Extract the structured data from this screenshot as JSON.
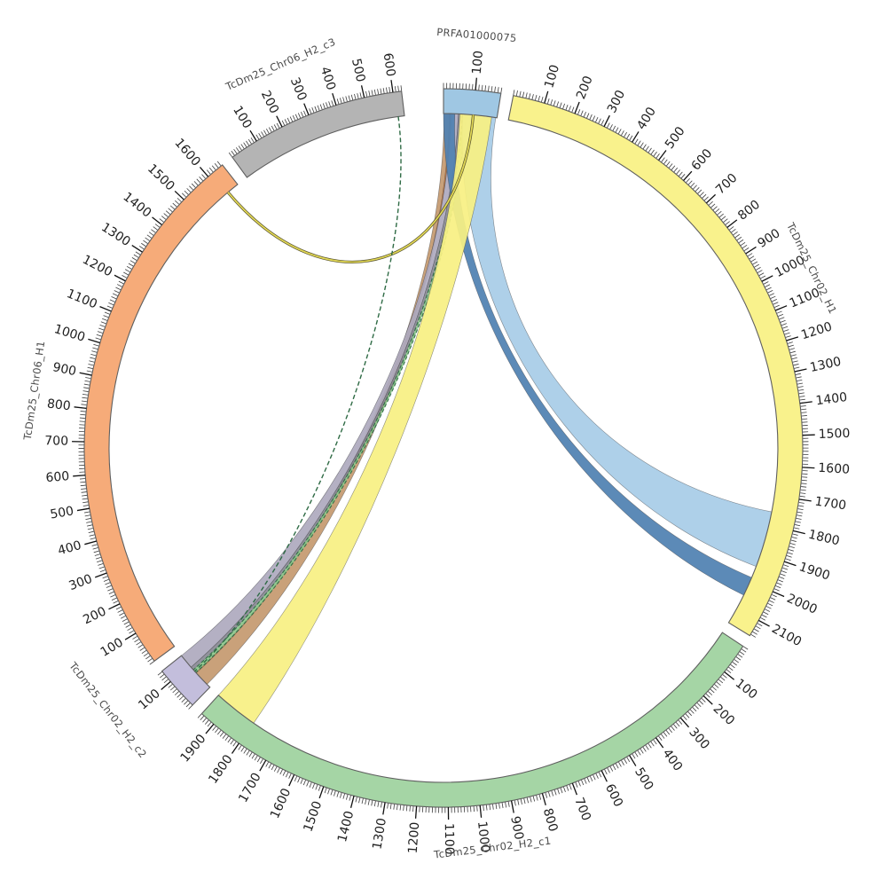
{
  "figure": {
    "background": "#ffffff",
    "kind": "circos-synteny-plot"
  },
  "chart_data": {
    "type": "other",
    "subtype": "circos",
    "tick_minor_step": 10,
    "tick_major_step": 100,
    "segments": [
      {
        "name": "PRFA01000075",
        "color": "#9fc7e3",
        "start_deg": 0.0,
        "end_deg": 9.2,
        "length": 180,
        "label_deg": 4.6,
        "label_r": 463,
        "tick_labels": [
          100
        ]
      },
      {
        "name": "TcDm25_Chr02_H1",
        "color": "#f9f28c",
        "start_deg": 11.2,
        "end_deg": 121.5,
        "length": 2155,
        "label_deg": 64,
        "label_r": 458,
        "tick_labels": [
          100,
          200,
          300,
          400,
          500,
          600,
          700,
          800,
          900,
          1000,
          1100,
          1200,
          1300,
          1400,
          1500,
          1600,
          1700,
          1800,
          1900,
          2000,
          2100
        ]
      },
      {
        "name": "TcDm25_Chr02_H2_c1",
        "color": "#a5d5a5",
        "start_deg": 123.5,
        "end_deg": 222.3,
        "length": 1950,
        "label_deg": 173,
        "label_r": 458,
        "tick_labels": [
          100,
          200,
          300,
          400,
          500,
          600,
          700,
          800,
          900,
          1000,
          1100,
          1200,
          1300,
          1400,
          1500,
          1600,
          1700,
          1800,
          1900
        ]
      },
      {
        "name": "TcDm25_Chr02_H2_c2",
        "color": "#c3bedc",
        "start_deg": 224.3,
        "end_deg": 231.6,
        "length": 142,
        "label_deg": 232,
        "label_r": 484,
        "tick_labels": [
          100
        ]
      },
      {
        "name": "TcDm25_Chr06_H1",
        "color": "#f6ab79",
        "start_deg": 233.6,
        "end_deg": 322.0,
        "length": 1655,
        "label_deg": 278,
        "label_r": 462,
        "tick_labels": [
          100,
          200,
          300,
          400,
          500,
          600,
          700,
          800,
          900,
          1000,
          1100,
          1200,
          1300,
          1400,
          1500,
          1600
        ]
      },
      {
        "name": "TcDm25_Chr06_H2_c3",
        "color": "#b4b4b4",
        "start_deg": 324.0,
        "end_deg": 353.3,
        "length": 630,
        "label_deg": 337,
        "label_r": 466,
        "tick_labels": [
          100,
          200,
          300,
          400,
          500,
          600
        ]
      }
    ],
    "ribbons": [
      {
        "name": "prfa-to-c2-tan",
        "source": {
          "segment": "PRFA01000075",
          "from": 2,
          "to": 22
        },
        "target": {
          "segment": "TcDm25_Chr02_H2_c2",
          "from": 14,
          "to": 68
        },
        "color": "#c59a70"
      },
      {
        "name": "prfa-to-c2-orange",
        "source": {
          "segment": "PRFA01000075",
          "from": 20,
          "to": 24
        },
        "target": {
          "segment": "TcDm25_Chr02_H2_c2",
          "from": 66,
          "to": 70
        },
        "color": "#d9813f"
      },
      {
        "name": "prfa-to-c2-lavender",
        "source": {
          "segment": "PRFA01000075",
          "from": 26,
          "to": 50
        },
        "target": {
          "segment": "TcDm25_Chr02_H2_c2",
          "from": 92,
          "to": 142
        },
        "color": "#aeaabe"
      },
      {
        "name": "prfa-to-c2-gray",
        "source": {
          "segment": "PRFA01000075",
          "from": 50,
          "to": 62
        },
        "target": {
          "segment": "TcDm25_Chr02_H2_c2",
          "from": 80,
          "to": 92
        },
        "color": "#8a8a94"
      },
      {
        "name": "prfa-to-chr02h1-dark",
        "source": {
          "segment": "PRFA01000075",
          "from": 0,
          "to": 38
        },
        "target": {
          "segment": "TcDm25_Chr02_H1",
          "from": 1985,
          "to": 2050
        },
        "color": "#5081b2"
      },
      {
        "name": "prfa-to-c2-green",
        "source": {
          "segment": "PRFA01000075",
          "from": 64,
          "to": 76
        },
        "target": {
          "segment": "TcDm25_Chr02_H2_c2",
          "from": 68,
          "to": 80
        },
        "color": "#8cc68c",
        "edge": "#2f6b45",
        "edge_dash": "4 2.5"
      },
      {
        "name": "prfa-to-chr02h1-light",
        "source": {
          "segment": "PRFA01000075",
          "from": 65,
          "to": 176
        },
        "target": {
          "segment": "TcDm25_Chr02_H1",
          "from": 1755,
          "to": 1945
        },
        "color": "#a8cce7"
      },
      {
        "name": "prfa-to-c1-yellow",
        "source": {
          "segment": "PRFA01000075",
          "from": 55,
          "to": 162
        },
        "target": {
          "segment": "TcDm25_Chr02_H2_c1",
          "from": 1798,
          "to": 1950
        },
        "color": "#f7f083"
      }
    ],
    "thin_links": [
      {
        "name": "chr06h1-to-prfa-yellow-line",
        "source": {
          "segment": "TcDm25_Chr06_H1",
          "pos": 1615
        },
        "target": {
          "segment": "PRFA01000075",
          "pos": 100
        },
        "color": "#e3d955",
        "edge": "#5a5530",
        "dashed": false
      },
      {
        "name": "c3-to-c2-green-dashed",
        "source": {
          "segment": "TcDm25_Chr06_H2_c3",
          "pos": 607
        },
        "target": {
          "segment": "TcDm25_Chr02_H2_c2",
          "pos": 74
        },
        "color": "#2f6b45",
        "dashed": true
      }
    ],
    "style": {
      "segment_outline": "#5f5f5f",
      "tick_color": "#3d3d3d",
      "major_tick_color": "#111111",
      "tick_label_color": "#1f1f1f",
      "segment_label_color": "#4a4a4a"
    }
  }
}
